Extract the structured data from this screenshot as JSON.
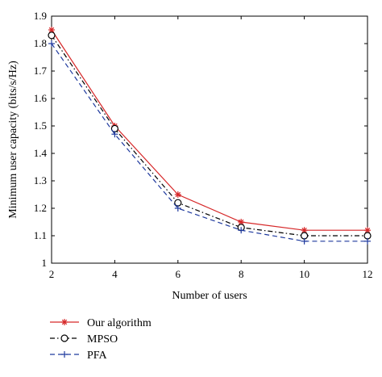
{
  "chart_data": {
    "type": "line",
    "xlabel": "Number of users",
    "ylabel": "Minimum user capacity (bits/s/Hz)",
    "x": [
      2,
      4,
      6,
      8,
      10,
      12
    ],
    "xlim": [
      2,
      12
    ],
    "ylim": [
      1,
      1.9
    ],
    "xticks": [
      "2",
      "4",
      "6",
      "8",
      "10",
      "12"
    ],
    "yticks": [
      "1",
      "1.1",
      "1.2",
      "1.3",
      "1.4",
      "1.5",
      "1.6",
      "1.7",
      "1.8",
      "1.9"
    ],
    "grid": false,
    "legend_position": "bottom-left, outside plot",
    "series": [
      {
        "name": "Our algorithm",
        "values": [
          1.85,
          1.5,
          1.25,
          1.15,
          1.12,
          1.12
        ],
        "color": "#d62728",
        "line_style": "solid",
        "marker": "asterisk"
      },
      {
        "name": "MPSO",
        "values": [
          1.83,
          1.49,
          1.22,
          1.13,
          1.1,
          1.1
        ],
        "color": "#000000",
        "line_style": "dash-dot",
        "marker": "circle"
      },
      {
        "name": "PFA",
        "values": [
          1.8,
          1.47,
          1.2,
          1.12,
          1.08,
          1.08
        ],
        "color": "#1f3a9e",
        "line_style": "dashed",
        "marker": "plus"
      }
    ]
  }
}
